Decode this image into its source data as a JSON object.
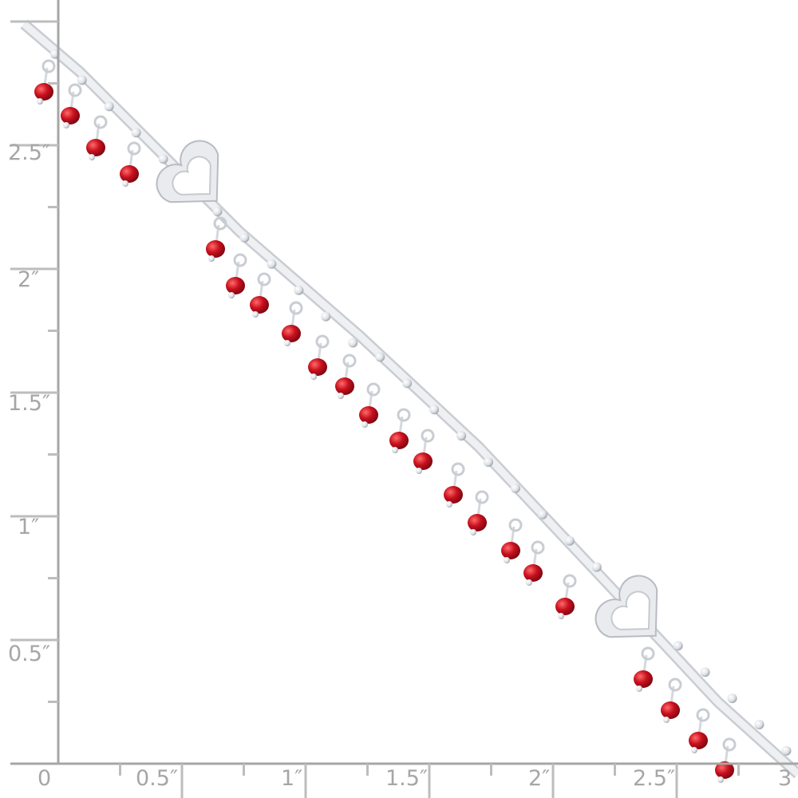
{
  "photo": {
    "subject": "silver bracelet with red glass bead dangles and heart links",
    "colors": {
      "silver": "#e4e6ea",
      "bead": "#c8101e",
      "ruler": "#a6a6a6",
      "background": "#ffffff"
    }
  },
  "ruler": {
    "vertical_labels": [
      "0.5″",
      "1″",
      "1.5″",
      "2″",
      "2.5″"
    ],
    "horizontal_labels": [
      "0",
      "0.5″",
      "1″",
      "1.5″",
      "2″",
      "2.5″",
      "3"
    ]
  }
}
